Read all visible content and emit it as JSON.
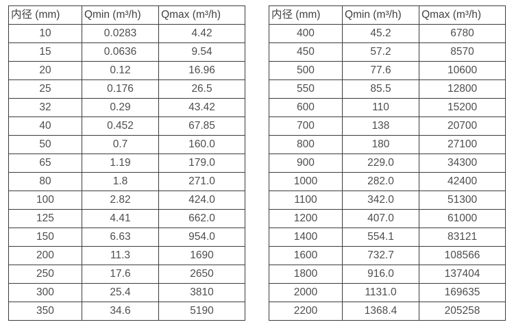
{
  "colors": {
    "border": "#3a3a3a",
    "cell_text": "#4d4d4d",
    "header_text": "#3f3f3f",
    "background": "#ffffff"
  },
  "tables": [
    {
      "name": "flow-spec-table-small-diameters",
      "headers": [
        "内径 (mm)",
        "Qmin (m³/h)",
        "Qmax (m³/h)"
      ],
      "rows": [
        [
          "10",
          "0.0283",
          "4.42"
        ],
        [
          "15",
          "0.0636",
          "9.54"
        ],
        [
          "20",
          "0.12",
          "16.96"
        ],
        [
          "25",
          "0.176",
          "26.5"
        ],
        [
          "32",
          "0.29",
          "43.42"
        ],
        [
          "40",
          "0.452",
          "67.85"
        ],
        [
          "50",
          "0.7",
          "160.0"
        ],
        [
          "65",
          "1.19",
          "179.0"
        ],
        [
          "80",
          "1.8",
          "271.0"
        ],
        [
          "100",
          "2.82",
          "424.0"
        ],
        [
          "125",
          "4.41",
          "662.0"
        ],
        [
          "150",
          "6.63",
          "954.0"
        ],
        [
          "200",
          "11.3",
          "1690"
        ],
        [
          "250",
          "17.6",
          "2650"
        ],
        [
          "300",
          "25.4",
          "3810"
        ],
        [
          "350",
          "34.6",
          "5190"
        ]
      ]
    },
    {
      "name": "flow-spec-table-large-diameters",
      "headers": [
        "内径 (mm)",
        "Qmin (m³/h)",
        "Qmax (m³/h)"
      ],
      "rows": [
        [
          "400",
          "45.2",
          "6780"
        ],
        [
          "450",
          "57.2",
          "8570"
        ],
        [
          "500",
          "77.6",
          "10600"
        ],
        [
          "550",
          "85.5",
          "12800"
        ],
        [
          "600",
          "110",
          "15200"
        ],
        [
          "700",
          "138",
          "20700"
        ],
        [
          "800",
          "180",
          "27100"
        ],
        [
          "900",
          "229.0",
          "34300"
        ],
        [
          "1000",
          "282.0",
          "42400"
        ],
        [
          "1100",
          "342.0",
          "51300"
        ],
        [
          "1200",
          "407.0",
          "61000"
        ],
        [
          "1400",
          "554.1",
          "83121"
        ],
        [
          "1600",
          "732.7",
          "108566"
        ],
        [
          "1800",
          "916.0",
          "137404"
        ],
        [
          "2000",
          "1131.0",
          "169635"
        ],
        [
          "2200",
          "1368.4",
          "205258"
        ]
      ]
    }
  ]
}
